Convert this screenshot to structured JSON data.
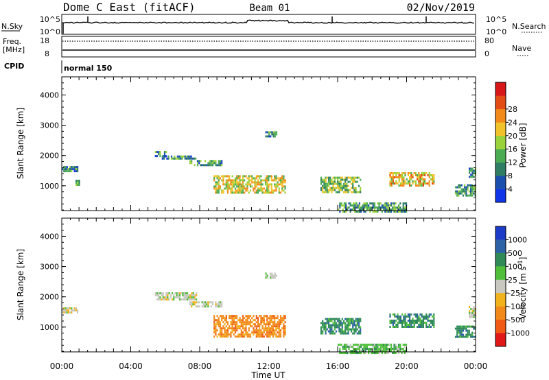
{
  "header": {
    "station": "Dome C East (fitACF)",
    "beam": "Beam 01",
    "date": "02/Nov/2019"
  },
  "status_panels": {
    "nsky_label": "N.Sky",
    "nsearch_label": "N.Search",
    "freq_label_1": "Freq.",
    "freq_label_2": "[MHz]",
    "nave_label": "Nave",
    "cpid_label": "CPID",
    "noise_top": "10^5",
    "noise_bottom": "10^0",
    "freq_top": "18",
    "freq_bottom": "8",
    "nave_top": "80",
    "nave_bottom": "0",
    "cpid_name": "normal 150"
  },
  "chart_data": [
    {
      "type": "heatmap",
      "title": "",
      "ylabel": "Slant Range [km]",
      "xlabel": "Time UT",
      "xlim": [
        "00:00",
        "24:00"
      ],
      "ylim": [
        180,
        4600
      ],
      "x_ticks": [
        "00:00",
        "04:00",
        "08:00",
        "12:00",
        "16:00",
        "20:00",
        "00:00"
      ],
      "y_ticks": [
        1000,
        2000,
        3000,
        4000
      ],
      "colorbar": {
        "label": "Power [dB]",
        "ticks": [
          "4",
          "8",
          "12",
          "16",
          "20",
          "24",
          "28"
        ],
        "colors": [
          "#1034e8",
          "#1a4fae",
          "#2f7d63",
          "#4bab52",
          "#9ad23c",
          "#f2c22a",
          "#f28a1a",
          "#e44c16",
          "#d81818"
        ]
      },
      "regions": [
        {
          "t": [
            0.0,
            0.9
          ],
          "r": [
            1450,
            1650
          ],
          "v": 8
        },
        {
          "t": [
            0.8,
            1.0
          ],
          "r": [
            1050,
            1200
          ],
          "v": 12
        },
        {
          "t": [
            5.4,
            6.1
          ],
          "r": [
            2000,
            2150
          ],
          "v": 8
        },
        {
          "t": [
            5.8,
            7.8
          ],
          "r": [
            1900,
            2000
          ],
          "v": 8
        },
        {
          "t": [
            7.4,
            9.3
          ],
          "r": [
            1700,
            1850
          ],
          "v": 9
        },
        {
          "t": [
            8.8,
            13.0
          ],
          "r": [
            750,
            1350
          ],
          "v": 18
        },
        {
          "t": [
            11.8,
            12.5
          ],
          "r": [
            2600,
            2800
          ],
          "v": 8
        },
        {
          "t": [
            15.0,
            17.3
          ],
          "r": [
            800,
            1300
          ],
          "v": 14
        },
        {
          "t": [
            16.0,
            20.0
          ],
          "r": [
            150,
            450
          ],
          "v": 10
        },
        {
          "t": [
            19.0,
            21.6
          ],
          "r": [
            1000,
            1450
          ],
          "v": 20
        },
        {
          "t": [
            22.8,
            24.0
          ],
          "r": [
            650,
            1050
          ],
          "v": 10
        },
        {
          "t": [
            23.6,
            24.0
          ],
          "r": [
            1300,
            1600
          ],
          "v": 8
        }
      ]
    },
    {
      "type": "heatmap",
      "title": "",
      "ylabel": "Slant Range [km]",
      "xlabel": "Time UT",
      "xlim": [
        "00:00",
        "24:00"
      ],
      "ylim": [
        180,
        4600
      ],
      "x_ticks": [
        "00:00",
        "04:00",
        "08:00",
        "12:00",
        "16:00",
        "20:00",
        "00:00"
      ],
      "y_ticks": [
        1000,
        2000,
        3000,
        4000
      ],
      "colorbar": {
        "label": "Velocity [m s^-1]",
        "ticks": [
          "1000",
          "500",
          "100",
          "25",
          "-25",
          "-100",
          "-500",
          "-1000"
        ],
        "colors": [
          "#1c3cc8",
          "#2d62a6",
          "#2f8a58",
          "#4fbf3a",
          "#c8c8c0",
          "#f2b21c",
          "#f28a1a",
          "#f05a14",
          "#e01818"
        ]
      },
      "regions": [
        {
          "t": [
            0.0,
            0.9
          ],
          "r": [
            1450,
            1650
          ],
          "v": 0
        },
        {
          "t": [
            5.4,
            7.8
          ],
          "r": [
            1900,
            2150
          ],
          "v": 0
        },
        {
          "t": [
            7.4,
            9.3
          ],
          "r": [
            1650,
            1850
          ],
          "v": 0
        },
        {
          "t": [
            8.8,
            13.0
          ],
          "r": [
            700,
            1400
          ],
          "v": -200
        },
        {
          "t": [
            11.8,
            12.5
          ],
          "r": [
            2600,
            2800
          ],
          "v": 0
        },
        {
          "t": [
            15.0,
            17.3
          ],
          "r": [
            800,
            1300
          ],
          "v": 100
        },
        {
          "t": [
            16.0,
            20.0
          ],
          "r": [
            150,
            450
          ],
          "v": 50
        },
        {
          "t": [
            19.0,
            21.6
          ],
          "r": [
            1000,
            1450
          ],
          "v": 200
        },
        {
          "t": [
            22.8,
            24.0
          ],
          "r": [
            650,
            1050
          ],
          "v": 200
        },
        {
          "t": [
            23.6,
            24.0
          ],
          "r": [
            1300,
            1700
          ],
          "v": 0
        }
      ]
    }
  ]
}
